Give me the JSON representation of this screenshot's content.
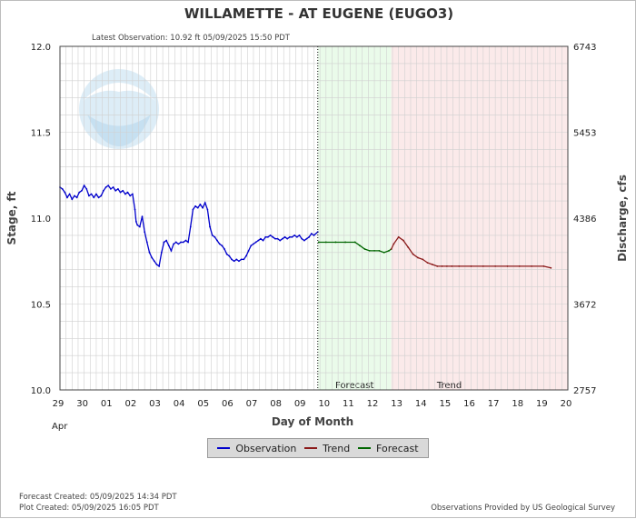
{
  "chart_data": {
    "type": "line",
    "title": "WILLAMETTE - AT EUGENE  (EUGO3)",
    "subtitle": "Latest Observation: 10.92 ft 05/09/2025 15:50 PDT",
    "xlabel": "Day of Month",
    "ylabel": "Stage, ft",
    "y2label": "Discharge, cfs",
    "month_label": "Apr",
    "x_tick_labels": [
      "29",
      "30",
      "01",
      "02",
      "03",
      "04",
      "05",
      "06",
      "07",
      "08",
      "09",
      "10",
      "11",
      "12",
      "13",
      "14",
      "15",
      "16",
      "17",
      "18",
      "19",
      "20"
    ],
    "xlim": [
      0,
      21
    ],
    "ylim": [
      10.0,
      12.0
    ],
    "y_ticks": [
      10.0,
      10.5,
      11.0,
      11.5,
      12.0
    ],
    "y_tick_labels": [
      "10.0",
      "10.5",
      "11.0",
      "11.5",
      "12.0"
    ],
    "y2_tick_labels": [
      "2757",
      "3672",
      "4386",
      "5453",
      "6743"
    ],
    "latest_observation_day": 10.66,
    "forecast_region": [
      10.66,
      13.7
    ],
    "trend_region": [
      13.7,
      21
    ],
    "region_labels": {
      "forecast": "Forecast",
      "trend": "Trend"
    },
    "grid": true,
    "series": [
      {
        "name": "Observation",
        "color": "#0000cc",
        "x": [
          0,
          0.1,
          0.2,
          0.3,
          0.4,
          0.5,
          0.6,
          0.7,
          0.8,
          0.9,
          1.0,
          1.1,
          1.2,
          1.3,
          1.4,
          1.5,
          1.6,
          1.7,
          1.8,
          1.9,
          2.0,
          2.1,
          2.2,
          2.3,
          2.4,
          2.5,
          2.6,
          2.7,
          2.8,
          2.9,
          3.0,
          3.1,
          3.15,
          3.2,
          3.3,
          3.4,
          3.5,
          3.6,
          3.7,
          3.8,
          3.9,
          4.0,
          4.1,
          4.2,
          4.3,
          4.4,
          4.5,
          4.6,
          4.7,
          4.8,
          4.9,
          5.0,
          5.1,
          5.2,
          5.3,
          5.4,
          5.5,
          5.6,
          5.7,
          5.8,
          5.9,
          6.0,
          6.1,
          6.2,
          6.3,
          6.4,
          6.5,
          6.6,
          6.7,
          6.8,
          6.9,
          7.0,
          7.1,
          7.2,
          7.3,
          7.4,
          7.5,
          7.6,
          7.7,
          7.8,
          7.9,
          8.0,
          8.1,
          8.2,
          8.3,
          8.4,
          8.5,
          8.6,
          8.7,
          8.8,
          8.9,
          9.0,
          9.1,
          9.2,
          9.3,
          9.4,
          9.5,
          9.6,
          9.7,
          9.8,
          9.9,
          10.0,
          10.1,
          10.2,
          10.3,
          10.4,
          10.5,
          10.66
        ],
        "y": [
          11.18,
          11.17,
          11.15,
          11.12,
          11.14,
          11.11,
          11.13,
          11.12,
          11.15,
          11.16,
          11.19,
          11.17,
          11.13,
          11.14,
          11.12,
          11.14,
          11.12,
          11.13,
          11.16,
          11.18,
          11.19,
          11.17,
          11.18,
          11.16,
          11.17,
          11.15,
          11.16,
          11.14,
          11.15,
          11.13,
          11.14,
          11.05,
          10.98,
          10.96,
          10.95,
          11.01,
          10.92,
          10.86,
          10.8,
          10.77,
          10.75,
          10.73,
          10.72,
          10.8,
          10.86,
          10.87,
          10.84,
          10.81,
          10.85,
          10.86,
          10.85,
          10.86,
          10.86,
          10.87,
          10.86,
          10.95,
          11.05,
          11.07,
          11.06,
          11.08,
          11.06,
          11.09,
          11.05,
          10.95,
          10.9,
          10.89,
          10.87,
          10.85,
          10.84,
          10.82,
          10.79,
          10.78,
          10.76,
          10.75,
          10.76,
          10.75,
          10.76,
          10.76,
          10.78,
          10.81,
          10.84,
          10.85,
          10.86,
          10.87,
          10.88,
          10.87,
          10.89,
          10.89,
          10.9,
          10.89,
          10.88,
          10.88,
          10.87,
          10.88,
          10.89,
          10.88,
          10.89,
          10.89,
          10.9,
          10.89,
          10.9,
          10.88,
          10.87,
          10.88,
          10.89,
          10.91,
          10.9,
          10.92
        ]
      },
      {
        "name": "Forecast",
        "color": "#006600",
        "x": [
          10.7,
          11.0,
          11.4,
          11.8,
          12.2,
          12.4,
          12.6,
          12.8,
          13.0,
          13.2,
          13.4,
          13.6,
          13.7
        ],
        "y": [
          10.86,
          10.86,
          10.86,
          10.86,
          10.86,
          10.84,
          10.82,
          10.81,
          10.81,
          10.81,
          10.8,
          10.81,
          10.82
        ]
      },
      {
        "name": "Trend",
        "color": "#8b1a1a",
        "x": [
          13.7,
          13.8,
          14.0,
          14.2,
          14.4,
          14.6,
          14.8,
          15.0,
          15.2,
          15.4,
          15.6,
          15.8,
          16.0,
          16.2,
          16.5,
          17.0,
          17.5,
          18.0,
          18.5,
          19.0,
          19.5,
          20.0,
          20.3
        ],
        "y": [
          10.82,
          10.85,
          10.89,
          10.87,
          10.83,
          10.79,
          10.77,
          10.76,
          10.74,
          10.73,
          10.72,
          10.72,
          10.72,
          10.72,
          10.72,
          10.72,
          10.72,
          10.72,
          10.72,
          10.72,
          10.72,
          10.72,
          10.71
        ]
      }
    ],
    "legend": {
      "placement": "bottom-center",
      "entries": [
        "Observation",
        "Trend",
        "Forecast"
      ]
    }
  },
  "footer": {
    "forecast_created": "Forecast Created: 05/09/2025 14:34 PDT",
    "plot_created": "Plot Created: 05/09/2025 16:05 PDT",
    "credit": "Observations Provided by US Geological Survey"
  },
  "watermark": {
    "logo_text": "NOAA"
  },
  "colors": {
    "forecast_bg": "#eafbea",
    "trend_bg": "#fbeaea",
    "grid": "#d0d0d0"
  }
}
